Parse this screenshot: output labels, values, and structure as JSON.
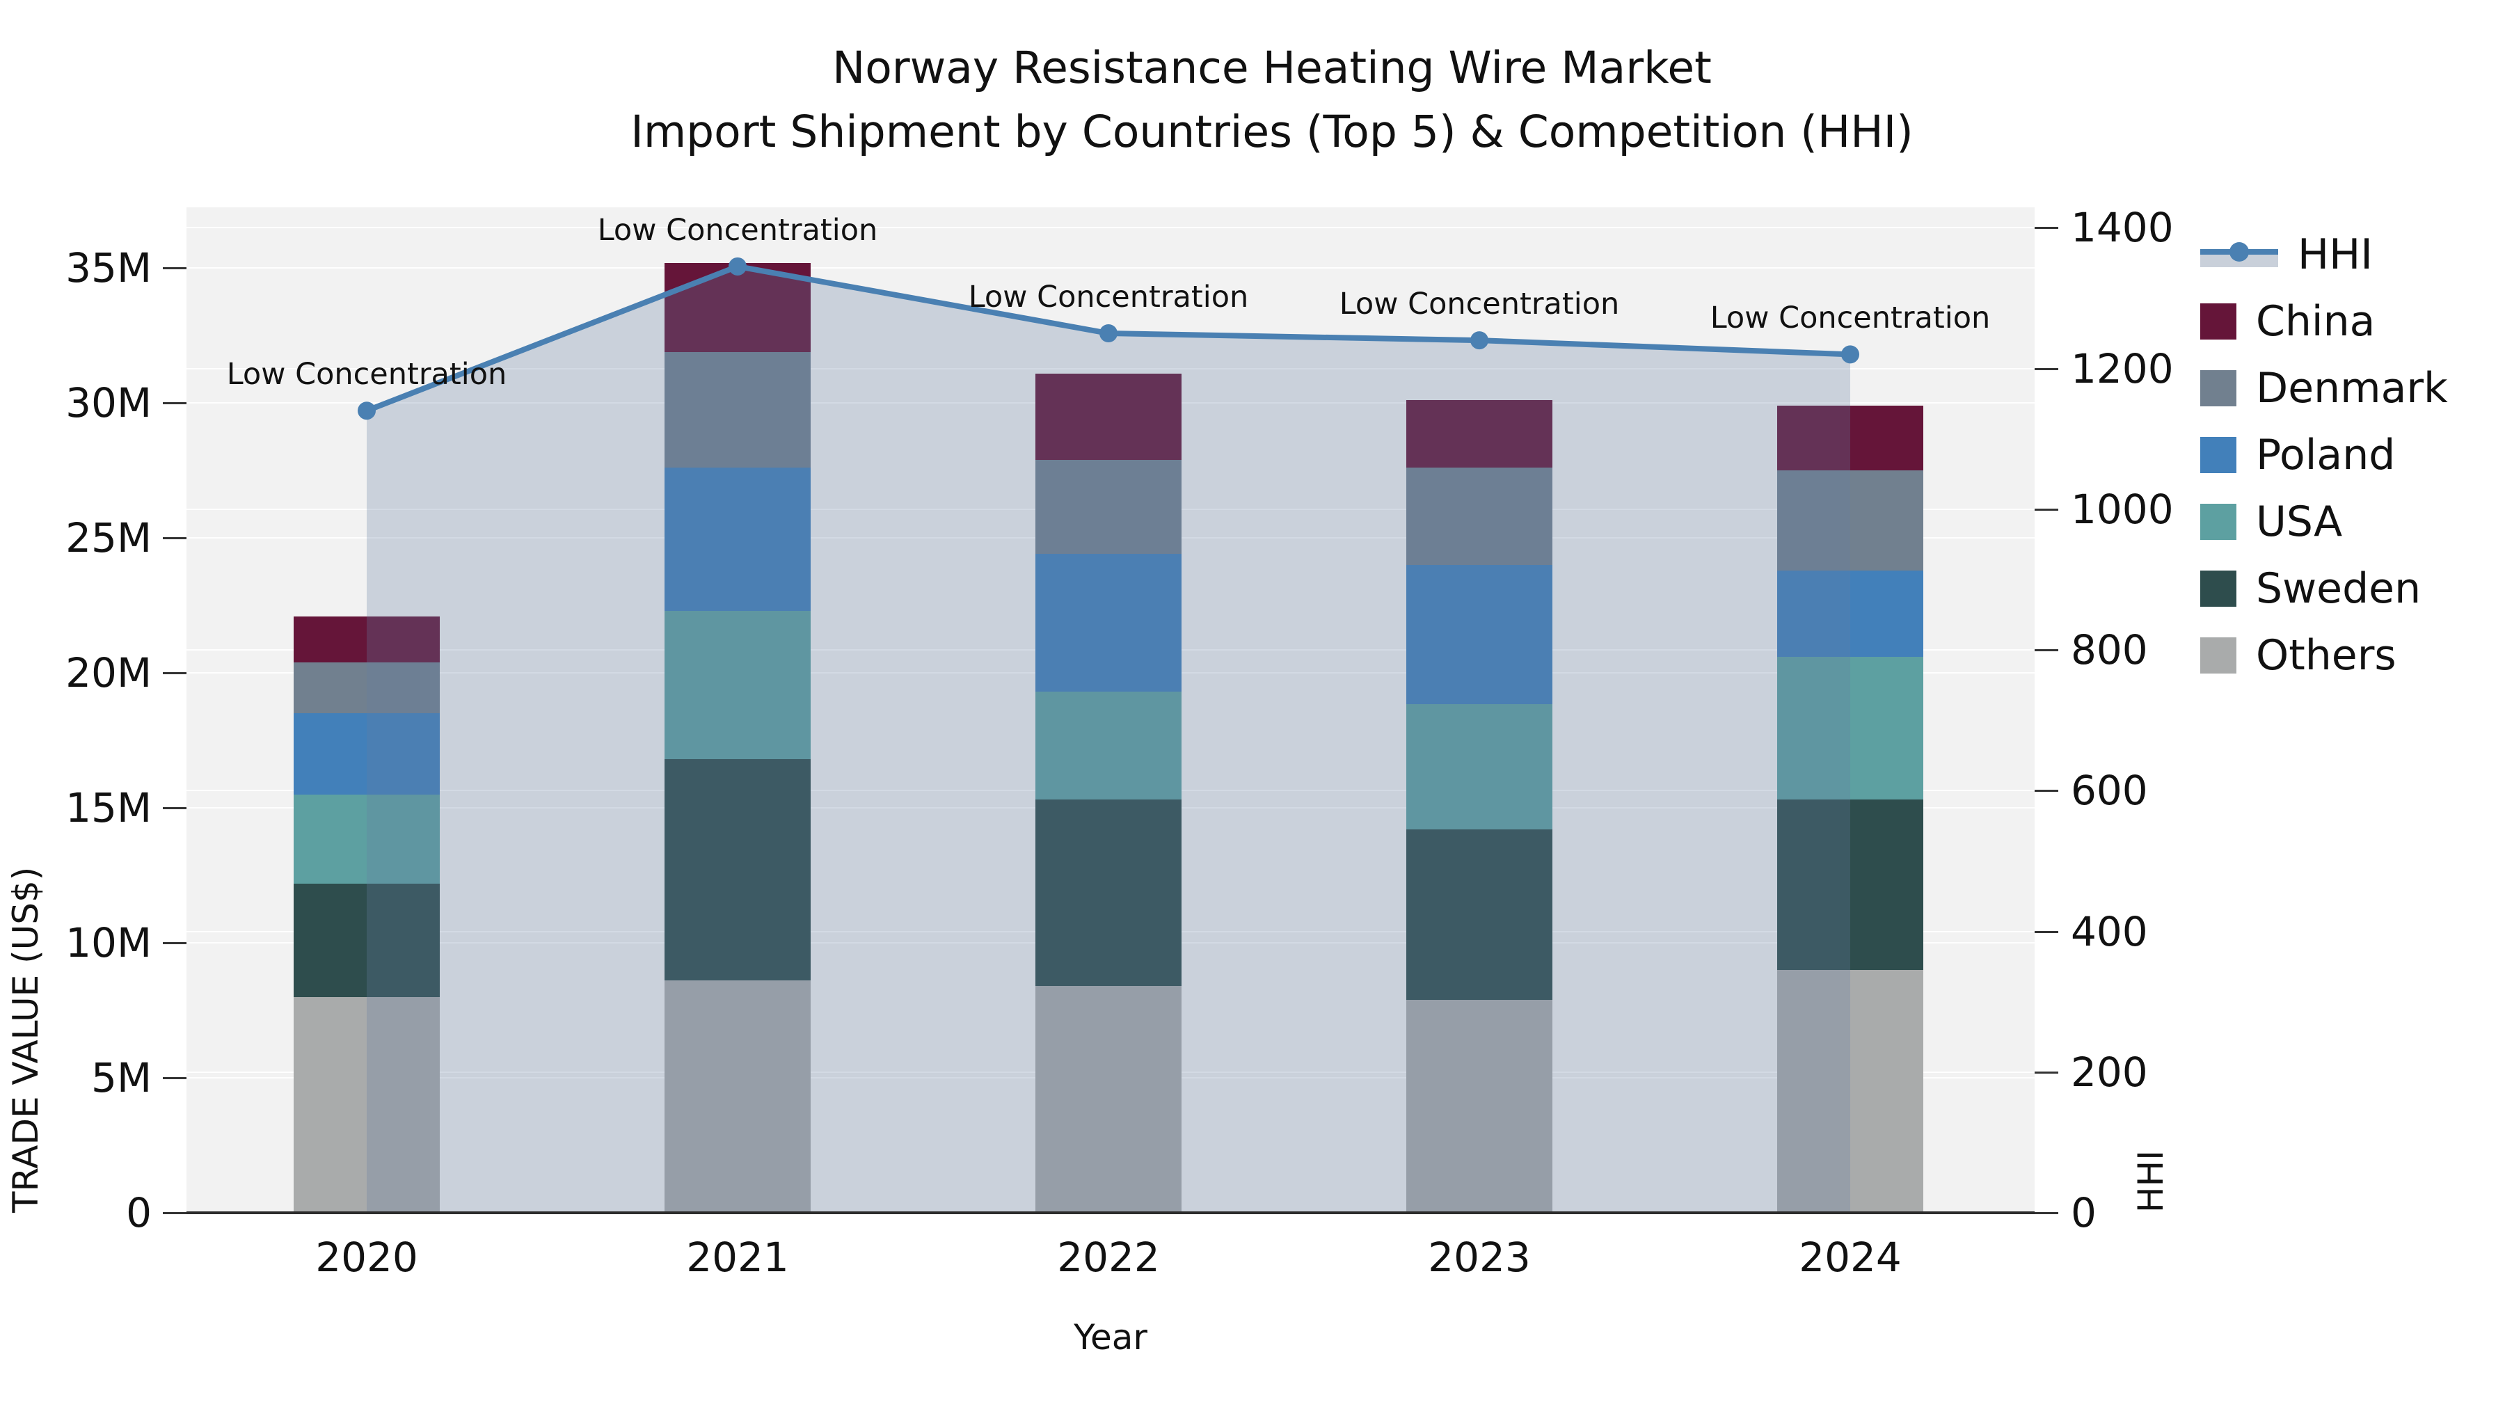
{
  "title": {
    "line1": "Norway Resistance Heating Wire Market",
    "line2": "Import Shipment by Countries (Top 5) & Competition (HHI)"
  },
  "axes": {
    "x_title": "Year",
    "y_left_title": "TRADE VALUE (US$)",
    "y_right_title": "HHI",
    "y_left_ticks": [
      {
        "label": "0",
        "value": 0
      },
      {
        "label": "5M",
        "value": 5
      },
      {
        "label": "10M",
        "value": 10
      },
      {
        "label": "15M",
        "value": 15
      },
      {
        "label": "20M",
        "value": 20
      },
      {
        "label": "25M",
        "value": 25
      },
      {
        "label": "30M",
        "value": 30
      },
      {
        "label": "35M",
        "value": 35
      }
    ],
    "y_right_ticks": [
      {
        "label": "0",
        "value": 0
      },
      {
        "label": "200",
        "value": 200
      },
      {
        "label": "400",
        "value": 400
      },
      {
        "label": "600",
        "value": 600
      },
      {
        "label": "800",
        "value": 800
      },
      {
        "label": "1000",
        "value": 1000
      },
      {
        "label": "1200",
        "value": 1200
      },
      {
        "label": "1400",
        "value": 1400
      }
    ]
  },
  "legend": {
    "items": [
      {
        "name": "HHI",
        "type": "line",
        "color": "#4a80b2"
      },
      {
        "name": "China",
        "type": "patch",
        "color": "#651539"
      },
      {
        "name": "Denmark",
        "type": "patch",
        "color": "#71808f"
      },
      {
        "name": "Poland",
        "type": "patch",
        "color": "#4280ba"
      },
      {
        "name": "USA",
        "type": "patch",
        "color": "#5da0a1"
      },
      {
        "name": "Sweden",
        "type": "patch",
        "color": "#2e4d4d"
      },
      {
        "name": "Others",
        "type": "patch",
        "color": "#a9abab"
      }
    ]
  },
  "chart_data": {
    "type": "bar",
    "subtype": "stacked-bar-with-line",
    "title": "Norway Resistance Heating Wire Market — Import Shipment by Countries (Top 5) & Competition (HHI)",
    "xlabel": "Year",
    "ylabel_left": "TRADE VALUE (US$)",
    "ylabel_right": "HHI",
    "categories": [
      "2020",
      "2021",
      "2022",
      "2023",
      "2024"
    ],
    "stack_order_bottom_to_top": [
      "Others",
      "Sweden",
      "USA",
      "Poland",
      "Denmark",
      "China"
    ],
    "series": [
      {
        "name": "Others",
        "color": "#a9abab",
        "unit": "M US$",
        "values": [
          8.0,
          8.6,
          8.4,
          7.9,
          9.0
        ]
      },
      {
        "name": "Sweden",
        "color": "#2e4d4d",
        "unit": "M US$",
        "values": [
          4.2,
          8.2,
          6.9,
          6.3,
          6.3
        ]
      },
      {
        "name": "USA",
        "color": "#5da0a1",
        "unit": "M US$",
        "values": [
          3.3,
          5.5,
          4.0,
          4.65,
          5.3
        ]
      },
      {
        "name": "Poland",
        "color": "#4280ba",
        "unit": "M US$",
        "values": [
          3.0,
          5.3,
          5.1,
          5.15,
          3.2
        ]
      },
      {
        "name": "Denmark",
        "color": "#71808f",
        "unit": "M US$",
        "values": [
          1.9,
          4.3,
          3.5,
          3.6,
          3.7
        ]
      },
      {
        "name": "China",
        "color": "#651539",
        "unit": "M US$",
        "values": [
          1.7,
          3.3,
          3.2,
          2.5,
          2.4
        ]
      }
    ],
    "bar_totals": [
      22.1,
      35.2,
      31.1,
      30.1,
      29.9
    ],
    "line_series": {
      "name": "HHI",
      "color": "#4a80b2",
      "area_fill": "rgba(100,125,160,0.28)",
      "values": [
        1140,
        1345,
        1250,
        1240,
        1220
      ]
    },
    "annotations": [
      {
        "text": "Low Concentration",
        "category": "2020"
      },
      {
        "text": "Low Concentration",
        "category": "2021"
      },
      {
        "text": "Low Concentration",
        "category": "2022"
      },
      {
        "text": "Low Concentration",
        "category": "2023"
      },
      {
        "text": "Low Concentration",
        "category": "2024"
      }
    ],
    "ylim_left": [
      0,
      37.25
    ],
    "ylim_right": [
      0,
      1429
    ],
    "grid": true,
    "legend_position": "upper-right-outside",
    "plot_background": "#f2f2f2"
  }
}
